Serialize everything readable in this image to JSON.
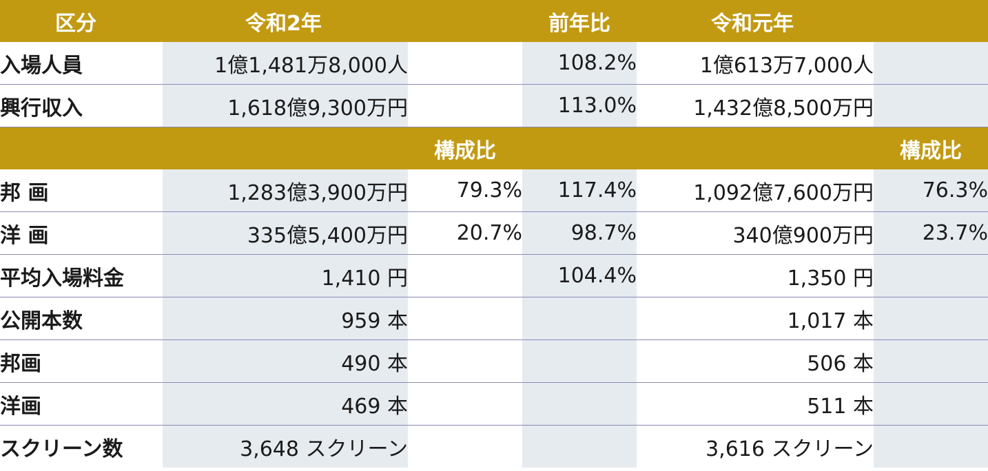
{
  "header_top": {
    "category": "区分",
    "current_year": "令和2年",
    "change": "前年比",
    "previous_year": "令和元年"
  },
  "header_mid": {
    "share_current": "構成比",
    "share_previous": "構成比"
  },
  "rows_top": [
    {
      "label": "入場人員",
      "current": "1億1,481万8,000人",
      "change": "108.2%",
      "previous": "1億613万7,000人"
    },
    {
      "label": "興行収入",
      "current": "1,618億9,300万円",
      "change": "113.0%",
      "previous": "1,432億8,500万円"
    }
  ],
  "rows_bottom": [
    {
      "label": "邦 画",
      "current": "1,283億3,900万円",
      "share_current": "79.3%",
      "change": "117.4%",
      "previous": "1,092億7,600万円",
      "share_previous": "76.3%"
    },
    {
      "label": "洋 画",
      "current": "335億5,400万円",
      "share_current": "20.7%",
      "change": "98.7%",
      "previous": "340億900万円",
      "share_previous": "23.7%"
    },
    {
      "label": "平均入場料金",
      "current": "1,410 円",
      "share_current": "",
      "change": "104.4%",
      "previous": "1,350 円",
      "share_previous": ""
    },
    {
      "label": "公開本数",
      "current": "959 本",
      "share_current": "",
      "change": "",
      "previous": "1,017 本",
      "share_previous": ""
    },
    {
      "label": "邦画",
      "current": "490 本",
      "share_current": "",
      "change": "",
      "previous": "506 本",
      "share_previous": ""
    },
    {
      "label": "洋画",
      "current": "469 本",
      "share_current": "",
      "change": "",
      "previous": "511 本",
      "share_previous": ""
    },
    {
      "label": "スクリーン数",
      "current": "3,648 スクリーン",
      "share_current": "",
      "change": "",
      "previous": "3,616 スクリーン",
      "share_previous": ""
    }
  ],
  "colors": {
    "header_gold": "#c29a12",
    "shade_cell": "#e6ebf0",
    "row_divider": "#8a88b8"
  }
}
